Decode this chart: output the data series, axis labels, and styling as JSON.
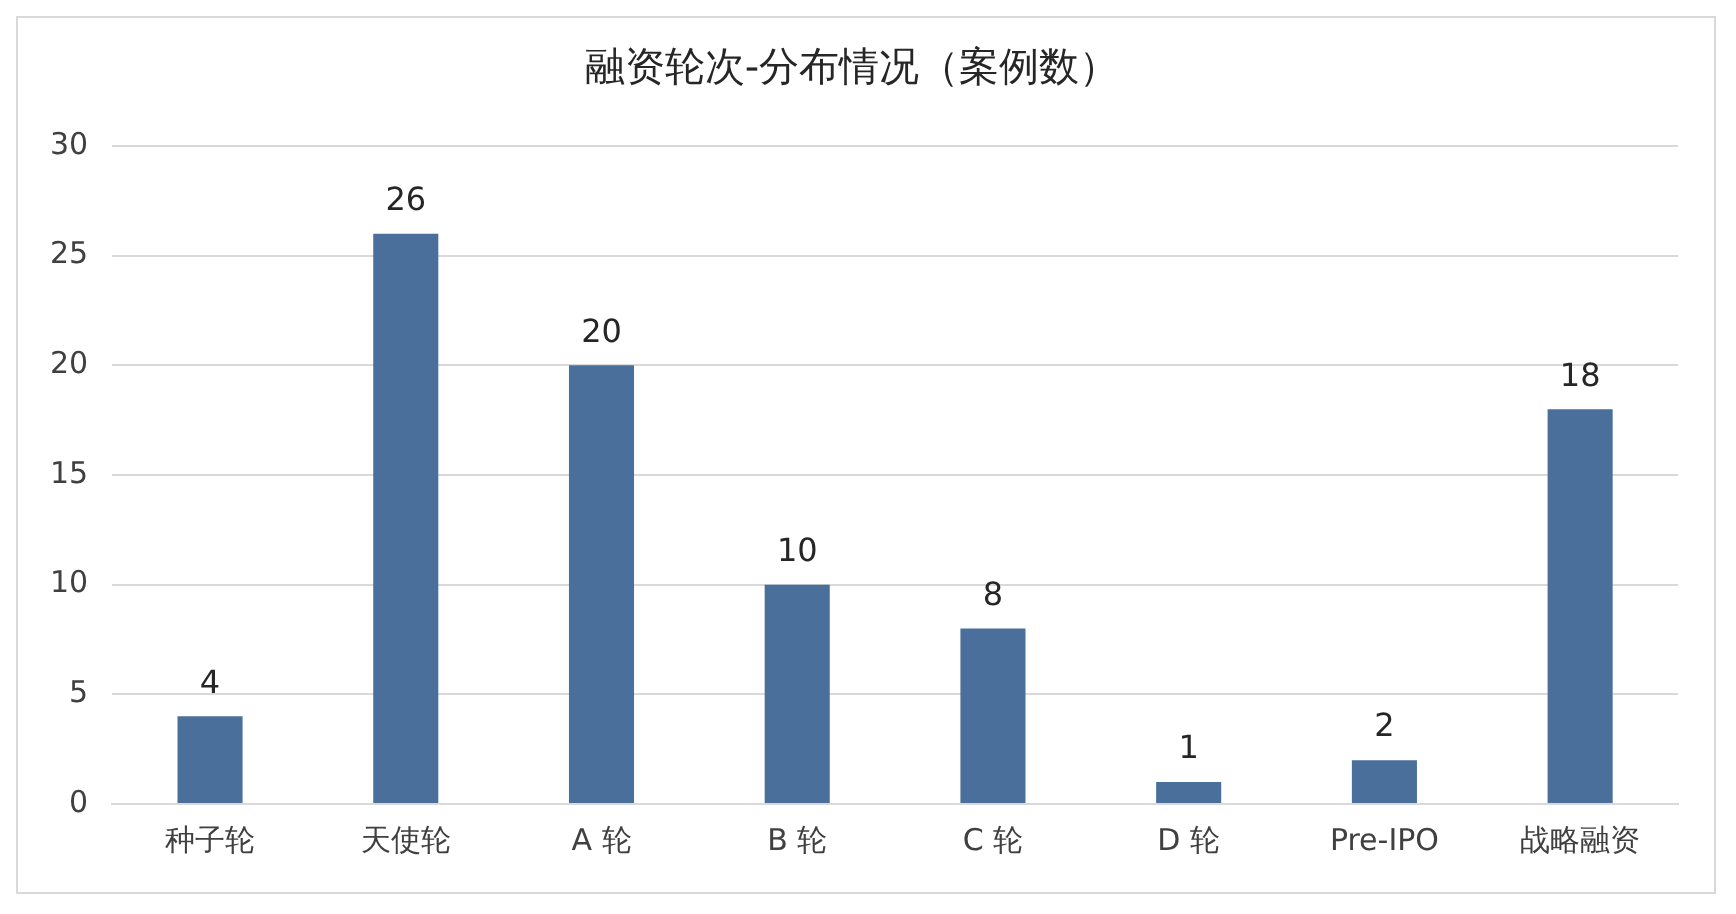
{
  "chart_data": {
    "type": "bar",
    "title": "融资轮次-分布情况（案例数）",
    "categories": [
      "种子轮",
      "天使轮",
      "A 轮",
      "B 轮",
      "C 轮",
      "D 轮",
      "Pre-IPO",
      "战略融资"
    ],
    "values": [
      4,
      26,
      20,
      10,
      8,
      1,
      2,
      18
    ],
    "color": "#4a6f9b",
    "ylim": [
      0,
      30
    ],
    "yticks": [
      0,
      5,
      10,
      15,
      20,
      25,
      30
    ],
    "grid": "y",
    "data_labels": true,
    "legend": false
  }
}
